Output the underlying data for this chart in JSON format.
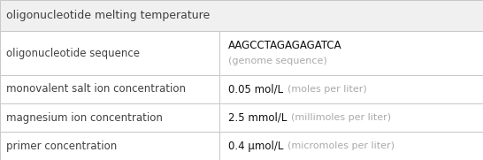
{
  "title": "oligonucleotide melting temperature",
  "title_bg": "#f0f0f0",
  "table_bg": "#ffffff",
  "border_color": "#c8c8c8",
  "rows": [
    {
      "label": "oligonucleotide sequence",
      "value_main": "AAGCCTAGAGAGATCA",
      "value_secondary": "(genome sequence)",
      "two_line": true,
      "value_weight": "normal"
    },
    {
      "label": "monovalent salt ion concentration",
      "value_main": "0.05 mol/L",
      "value_secondary": "(moles per liter)",
      "two_line": false,
      "value_weight": "normal"
    },
    {
      "label": "magnesium ion concentration",
      "value_main": "2.5 mmol/L",
      "value_secondary": "(millimoles per liter)",
      "two_line": false,
      "value_weight": "normal"
    },
    {
      "label": "primer concentration",
      "value_main": "0.4 μmol/L",
      "value_secondary": "(micromoles per liter)",
      "two_line": false,
      "value_weight": "normal"
    }
  ],
  "label_color": "#404040",
  "value_main_color": "#111111",
  "value_secondary_color": "#aaaaaa",
  "title_fontsize": 9.0,
  "label_fontsize": 8.5,
  "value_fontsize": 8.5,
  "secondary_fontsize": 8.0,
  "col_split": 0.455,
  "fig_width": 5.46,
  "fig_height": 1.81,
  "dpi": 100
}
